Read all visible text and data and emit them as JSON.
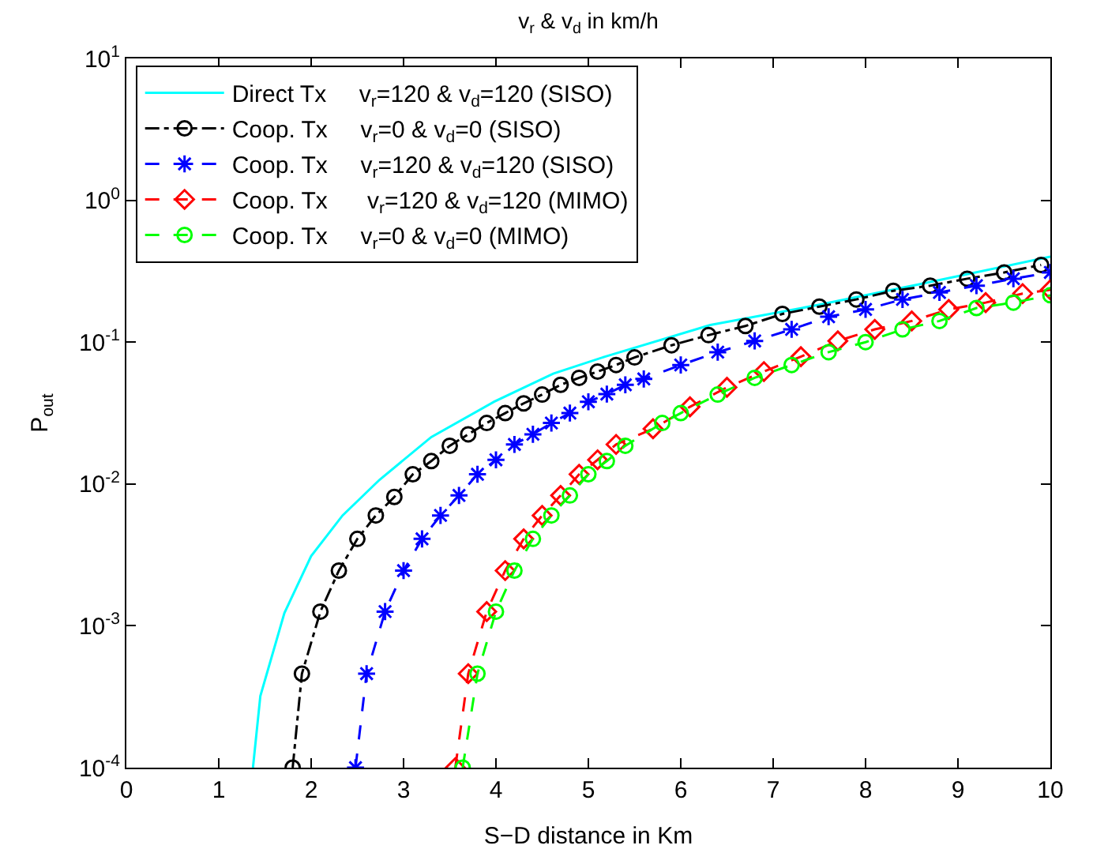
{
  "chart_data": {
    "type": "line",
    "title": "v$_{r}$ & v$_{d}$ in km/h",
    "xlabel": "S−D distance in Km",
    "ylabel": "P$_{out}$",
    "xlim": [
      0,
      10
    ],
    "xticks": [
      0,
      1,
      2,
      3,
      4,
      5,
      6,
      7,
      8,
      9,
      10
    ],
    "ylim": [
      0.0001,
      10
    ],
    "yticks": [
      {
        "value": 0.0001,
        "label": "10$^{-4}$"
      },
      {
        "value": 0.001,
        "label": "10$^{-3}$"
      },
      {
        "value": 0.01,
        "label": "10$^{-2}$"
      },
      {
        "value": 0.1,
        "label": "10$^{-1}$"
      },
      {
        "value": 1,
        "label": "10$^{0}$"
      },
      {
        "value": 10,
        "label": "10$^{1}$"
      }
    ],
    "log": "y",
    "legend": "top left",
    "series": [
      {
        "name": "Direct Tx     v$_{r}$=120 & v$_{d}$=120 (SISO)",
        "color": "#00ffff",
        "line_style": "solid",
        "marker": "none",
        "x": [
          1.37,
          1.45,
          1.71,
          2.0,
          2.34,
          2.74,
          3.3,
          3.98,
          4.62,
          5.18,
          6.32,
          7.47,
          8.6,
          10
        ],
        "values": [
          0.0001,
          0.00032,
          0.00123,
          0.0031,
          0.006,
          0.0107,
          0.0214,
          0.038,
          0.06,
          0.079,
          0.132,
          0.182,
          0.257,
          0.4
        ]
      },
      {
        "name": "Coop. Tx     v$_{r}$=0 & v$_{d}$=0 (SISO)",
        "color": "#000000",
        "line_style": "dashdot",
        "marker": "circle",
        "x": [
          1.8,
          1.9,
          2.1,
          2.3,
          2.5,
          2.7,
          2.9,
          3.1,
          3.3,
          3.5,
          3.7,
          3.9,
          4.1,
          4.3,
          4.5,
          4.7,
          4.9,
          5.1,
          5.3,
          5.5,
          5.9,
          6.3,
          6.7,
          7.1,
          7.5,
          7.9,
          8.3,
          8.7,
          9.1,
          9.5,
          9.9
        ],
        "values": [
          0.0001,
          0.00046,
          0.00126,
          0.00245,
          0.0041,
          0.006,
          0.0081,
          0.0117,
          0.0145,
          0.0186,
          0.0224,
          0.0269,
          0.0316,
          0.037,
          0.0427,
          0.05,
          0.056,
          0.062,
          0.069,
          0.078,
          0.095,
          0.112,
          0.13,
          0.158,
          0.178,
          0.2,
          0.23,
          0.25,
          0.28,
          0.31,
          0.35
        ]
      },
      {
        "name": "Coop. Tx     v$_{r}$=120 & v$_{d}$=120 (SISO)",
        "color": "#0000ff",
        "line_style": "dashed",
        "marker": "cross",
        "x": [
          2.48,
          2.6,
          2.8,
          3.0,
          3.2,
          3.4,
          3.6,
          3.8,
          4.0,
          4.2,
          4.4,
          4.6,
          4.8,
          5.0,
          5.2,
          5.4,
          5.6,
          6.0,
          6.4,
          6.8,
          7.2,
          7.6,
          8.0,
          8.4,
          8.8,
          9.2,
          9.6,
          10
        ],
        "values": [
          0.0001,
          0.00046,
          0.00126,
          0.00245,
          0.0041,
          0.006,
          0.0083,
          0.0117,
          0.0148,
          0.019,
          0.0224,
          0.0269,
          0.0316,
          0.038,
          0.043,
          0.05,
          0.055,
          0.069,
          0.085,
          0.102,
          0.123,
          0.151,
          0.17,
          0.2,
          0.224,
          0.25,
          0.28,
          0.31
        ]
      },
      {
        "name": "Coop. Tx      v$_{r}$=120 & v$_{d}$=120 (MIMO)",
        "color": "#ff0000",
        "line_style": "dashed",
        "marker": "diamond",
        "x": [
          3.56,
          3.7,
          3.9,
          4.1,
          4.3,
          4.5,
          4.7,
          4.9,
          5.1,
          5.3,
          5.7,
          6.1,
          6.5,
          6.9,
          7.3,
          7.7,
          8.1,
          8.5,
          8.9,
          9.3,
          9.7,
          10
        ],
        "values": [
          0.0001,
          0.00046,
          0.00126,
          0.00245,
          0.0041,
          0.006,
          0.0083,
          0.0117,
          0.0148,
          0.019,
          0.0245,
          0.035,
          0.048,
          0.062,
          0.079,
          0.102,
          0.123,
          0.141,
          0.17,
          0.19,
          0.22,
          0.234
        ]
      },
      {
        "name": "Coop. Tx     v$_{r}$=0 & v$_{d}$=0 (MIMO)",
        "color": "#00ff00",
        "line_style": "dashed",
        "marker": "circle",
        "x": [
          3.64,
          3.8,
          4.0,
          4.2,
          4.4,
          4.6,
          4.8,
          5.0,
          5.2,
          5.4,
          5.8,
          6.0,
          6.4,
          6.8,
          7.2,
          7.6,
          8.0,
          8.4,
          8.8,
          9.2,
          9.6,
          10
        ],
        "values": [
          0.0001,
          0.00046,
          0.00126,
          0.00245,
          0.0041,
          0.006,
          0.0083,
          0.0117,
          0.0145,
          0.0186,
          0.0269,
          0.0316,
          0.0427,
          0.056,
          0.069,
          0.085,
          0.1,
          0.123,
          0.141,
          0.174,
          0.19,
          0.214
        ]
      }
    ]
  }
}
